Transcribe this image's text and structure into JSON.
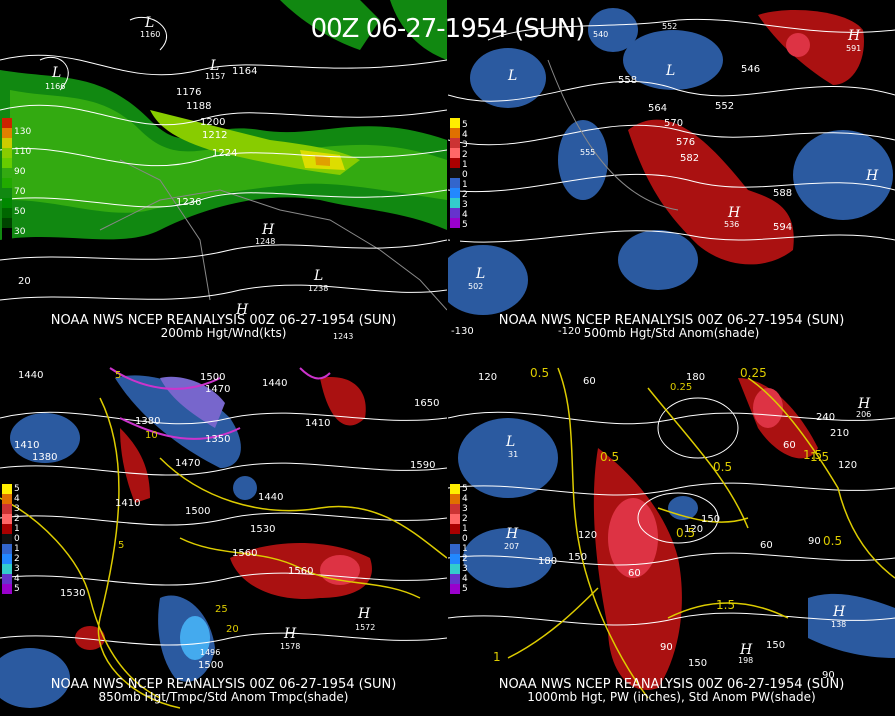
{
  "title": "00Z 06-27-1954 (SUN)",
  "panels": [
    {
      "line1": "NOAA NWS NCEP REANALYSIS 00Z 06-27-1954 (SUN)",
      "line2": "200mb Hgt/Wnd(kts)",
      "scale": [
        "130",
        "110",
        "90",
        "70",
        "50",
        "30"
      ],
      "scale_colors": [
        "#cc2200",
        "#e08000",
        "#cccc00",
        "#66cc00",
        "#22aa00",
        "#008800"
      ],
      "contours": [
        "1160",
        "1157",
        "1164",
        "1166",
        "1176",
        "1188",
        "1200",
        "1212",
        "1224",
        "1236",
        "1248",
        "1238",
        "1243",
        "20"
      ]
    },
    {
      "line1": "NOAA NWS NCEP REANALYSIS 00Z 06-27-1954 (SUN)",
      "line2": "500mb Hgt/Std Anom(shade)",
      "scale": [
        "5",
        "4",
        "3",
        "2",
        "1",
        "0",
        "1",
        "2",
        "3",
        "4",
        "5"
      ],
      "contours": [
        "540",
        "552",
        "546",
        "558",
        "564",
        "552",
        "570",
        "576",
        "582",
        "588",
        "594",
        "555",
        "502",
        "591",
        "536",
        "-130",
        "-120"
      ]
    },
    {
      "line1": "NOAA NWS NCEP REANALYSIS 00Z 06-27-1954 (SUN)",
      "line2": "850mb Hgt/Tmpc/Std Anom Tmpc(shade)",
      "scale": [
        "5",
        "4",
        "3",
        "2",
        "1",
        "0",
        "1",
        "2",
        "3",
        "4",
        "5"
      ],
      "contours": [
        "1440",
        "1500",
        "1470",
        "1440",
        "1410",
        "1650",
        "1380",
        "1350",
        "1410",
        "1380",
        "1590",
        "1470",
        "1440",
        "1410",
        "1500",
        "1530",
        "1560",
        "1560",
        "1530",
        "1572",
        "1578",
        "1500",
        "1496",
        "10",
        "5",
        "25",
        "20",
        "5"
      ]
    },
    {
      "line1": "NOAA NWS NCEP REANALYSIS 00Z 06-27-1954 (SUN)",
      "line2": "1000mb Hgt, PW (inches), Std Anom PW(shade)",
      "scale": [
        "5",
        "4",
        "3",
        "2",
        "1",
        "0",
        "1",
        "2",
        "3",
        "4",
        "5"
      ],
      "contours": [
        "120",
        "0.5",
        "60",
        "180",
        "0.25",
        "0.25",
        "240",
        "206",
        "210",
        "60",
        "31",
        "0.5",
        "0.5",
        "1.5",
        "120",
        "120",
        "150",
        "60",
        "90",
        "207",
        "180",
        "150",
        "120",
        "60",
        "1.5",
        "90",
        "150",
        "1",
        "0.5",
        "1.5",
        "138",
        "0.5",
        "198",
        "150",
        "90"
      ]
    }
  ],
  "anomaly_scale_colors": [
    "#ffee00",
    "#e07000",
    "#cc3333",
    "#ff6666",
    "#aa0000",
    "#111111",
    "#3366cc",
    "#2288ff",
    "#33cccc",
    "#6633cc",
    "#9900cc"
  ]
}
